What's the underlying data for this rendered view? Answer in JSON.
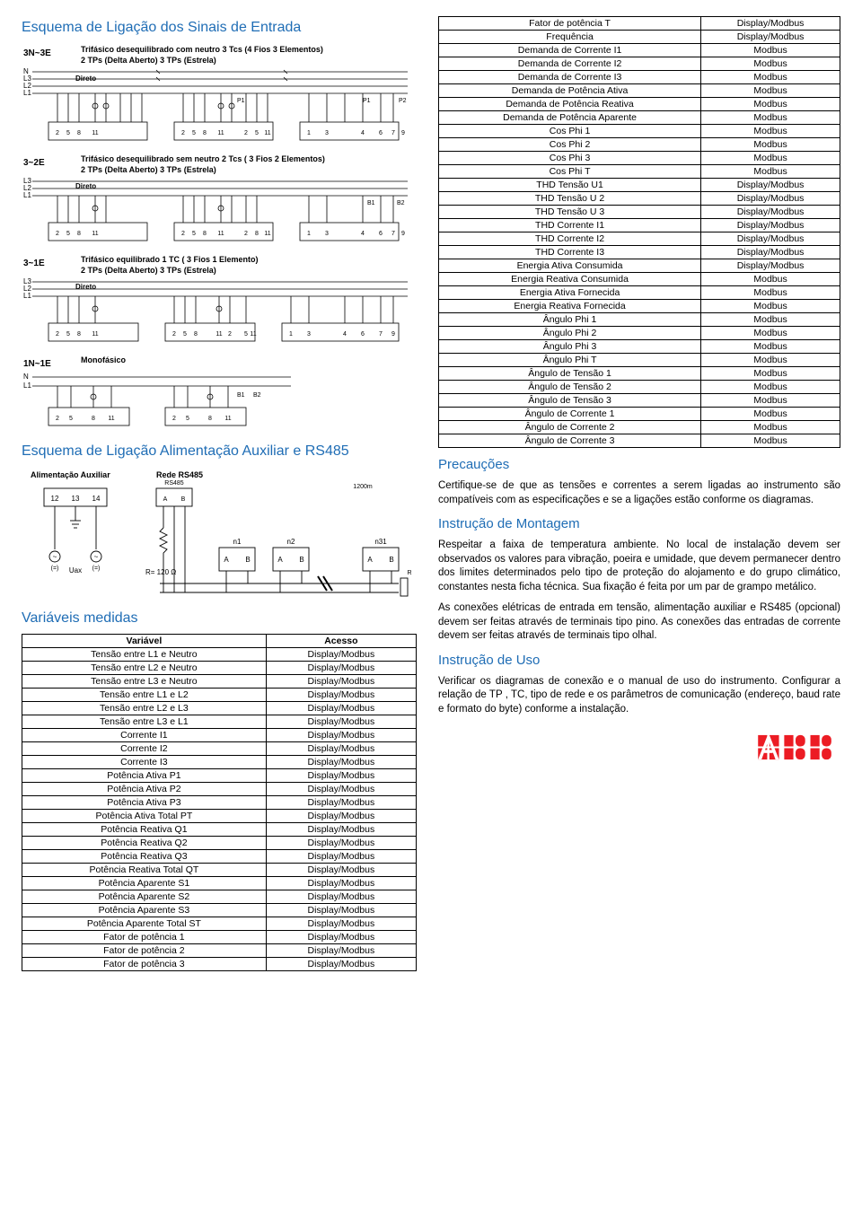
{
  "headings": {
    "h1": "Esquema de Ligação dos Sinais de Entrada",
    "h2": "Esquema de Ligação Alimentação Auxiliar e RS485",
    "h3": "Variáveis medidas",
    "h4": "Precauções",
    "h5": "Instrução de Montagem",
    "h6": "Instrução de Uso"
  },
  "diagram_labels": {
    "d1_line1": "Trifásico desequilibrado com neutro 3 Tcs (4 Fios 3 Elementos)",
    "d1_line2": "2 TPs (Delta Aberto)        3 TPs (Estrela)",
    "d1_code": "3N~3E",
    "d1_direto": "Direto",
    "d2_line1": "Trifásico desequilibrado sem neutro 2 Tcs ( 3 Fios 2 Elementos)",
    "d2_line2": "2 TPs (Delta Aberto)          3 TPs (Estrela)",
    "d2_code": "3~2E",
    "d2_direto": "Direto",
    "d3_line1": "Trifásico equilibrado 1 TC ( 3 Fios 1 Elemento)",
    "d3_line2": "2 TPs (Delta Aberto)          3 TPs (Estrela)",
    "d3_code": "3~1E",
    "d3_direto": "Direto",
    "d4_line1": "Monofásico",
    "d4_code": "1N~1E",
    "aux_left": "Alimentação Auxiliar",
    "aux_right": "Rede RS485",
    "aux_rs485": "RS485",
    "aux_len": "1200m",
    "aux_r": "R= 120 Ω",
    "aux_12": "12",
    "aux_13": "13",
    "aux_14": "14",
    "aux_uax": "Uax",
    "aux_a": "A",
    "aux_b": "B",
    "aux_n1": "n1",
    "aux_n2": "n2",
    "aux_n31": "n31"
  },
  "left_table": {
    "header": [
      "Variável",
      "Acesso"
    ],
    "rows": [
      [
        "Tensão entre L1 e Neutro",
        "Display/Modbus"
      ],
      [
        "Tensão entre L2 e Neutro",
        "Display/Modbus"
      ],
      [
        "Tensão entre L3 e Neutro",
        "Display/Modbus"
      ],
      [
        "Tensão entre L1 e L2",
        "Display/Modbus"
      ],
      [
        "Tensão entre L2 e L3",
        "Display/Modbus"
      ],
      [
        "Tensão entre L3 e L1",
        "Display/Modbus"
      ],
      [
        "Corrente I1",
        "Display/Modbus"
      ],
      [
        "Corrente I2",
        "Display/Modbus"
      ],
      [
        "Corrente I3",
        "Display/Modbus"
      ],
      [
        "Potência  Ativa P1",
        "Display/Modbus"
      ],
      [
        "Potência Ativa P2",
        "Display/Modbus"
      ],
      [
        "Potência Ativa P3",
        "Display/Modbus"
      ],
      [
        "Potência Ativa Total PT",
        "Display/Modbus"
      ],
      [
        "Potência  Reativa Q1",
        "Display/Modbus"
      ],
      [
        "Potência  Reativa Q2",
        "Display/Modbus"
      ],
      [
        "Potência  Reativa Q3",
        "Display/Modbus"
      ],
      [
        "Potência  Reativa Total  QT",
        "Display/Modbus"
      ],
      [
        "Potência  Aparente S1",
        "Display/Modbus"
      ],
      [
        "Potência  Aparente S2",
        "Display/Modbus"
      ],
      [
        "Potência  Aparente S3",
        "Display/Modbus"
      ],
      [
        "Potência  Aparente Total ST",
        "Display/Modbus"
      ],
      [
        "Fator de potência 1",
        "Display/Modbus"
      ],
      [
        "Fator de potência 2",
        "Display/Modbus"
      ],
      [
        "Fator de potência  3",
        "Display/Modbus"
      ]
    ]
  },
  "right_table": {
    "rows": [
      [
        "Fator de potência T",
        "Display/Modbus"
      ],
      [
        "Frequência",
        "Display/Modbus"
      ],
      [
        "Demanda de Corrente I1",
        "Modbus"
      ],
      [
        "Demanda de Corrente I2",
        "Modbus"
      ],
      [
        "Demanda de Corrente I3",
        "Modbus"
      ],
      [
        "Demanda de Potência Ativa",
        "Modbus"
      ],
      [
        "Demanda de Potência Reativa",
        "Modbus"
      ],
      [
        "Demanda de Potência Aparente",
        "Modbus"
      ],
      [
        "Cos Phi 1",
        "Modbus"
      ],
      [
        "Cos Phi 2",
        "Modbus"
      ],
      [
        "Cos Phi 3",
        "Modbus"
      ],
      [
        "Cos Phi T",
        "Modbus"
      ],
      [
        "THD Tensão U1",
        "Display/Modbus"
      ],
      [
        "THD Tensão U 2",
        "Display/Modbus"
      ],
      [
        "THD Tensão U 3",
        "Display/Modbus"
      ],
      [
        "THD Corrente I1",
        "Display/Modbus"
      ],
      [
        "THD Corrente I2",
        "Display/Modbus"
      ],
      [
        "THD Corrente I3",
        "Display/Modbus"
      ],
      [
        "Energia Ativa Consumida",
        "Display/Modbus"
      ],
      [
        "Energia Reativa Consumida",
        "Modbus"
      ],
      [
        "Energia Ativa Fornecida",
        "Modbus"
      ],
      [
        "Energia Reativa Fornecida",
        "Modbus"
      ],
      [
        "Ângulo Phi 1",
        "Modbus"
      ],
      [
        "Ângulo Phi  2",
        "Modbus"
      ],
      [
        "Ângulo Phi  3",
        "Modbus"
      ],
      [
        "Ângulo Phi T",
        "Modbus"
      ],
      [
        "Ângulo de Tensão 1",
        "Modbus"
      ],
      [
        "Ângulo de Tensão 2",
        "Modbus"
      ],
      [
        "Ângulo de Tensão  3",
        "Modbus"
      ],
      [
        "Ângulo de Corrente 1",
        "Modbus"
      ],
      [
        "Ângulo de Corrente 2",
        "Modbus"
      ],
      [
        "Ângulo de Corrente  3",
        "Modbus"
      ]
    ]
  },
  "paragraphs": {
    "precautions": "Certifique-se de que as tensões e correntes a serem ligadas ao instrumento são compatíveis com as especificações e se a ligações estão conforme os diagramas.",
    "montagem1": "Respeitar a faixa de temperatura ambiente. No local de instalação devem ser observados os valores para vibração, poeira e umidade, que devem permanecer dentro dos limites determinados pelo tipo de proteção do alojamento e do grupo climático, constantes nesta ficha técnica. Sua fixação é feita por um par de grampo metálico.",
    "montagem2": "As conexões elétricas de entrada em tensão, alimentação auxiliar e RS485 (opcional) devem ser feitas através de terminais tipo pino. As conexões das entradas de corrente devem ser feitas através de terminais tipo olhal.",
    "uso": "Verificar os diagramas de conexão e o manual de uso do instrumento. Configurar a relação de TP , TC, tipo de rede e os parâmetros de comunicação (endereço, baud rate e formato do byte) conforme a instalação."
  },
  "colors": {
    "heading": "#1f6db5",
    "border": "#000000",
    "text": "#000000",
    "logo": "#ec1c24"
  }
}
